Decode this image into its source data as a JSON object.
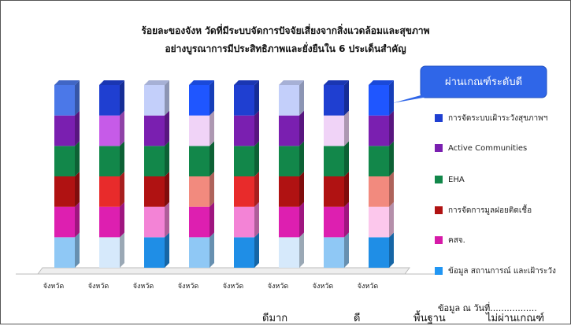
{
  "title_line1": "ร้อยละของจังห วัดที่มีระบบจัดการปัจจัยเสี่ยงจากสิ่งแวดล้อมและสุขภาพ",
  "title_line2": "อย่างบูรณาการมีประสิทธิภาพและยั่งยืนใน 6 ประเด็นสำคัญ",
  "callout": "ผ่านเกณฑ์ระดับดี",
  "note": "ข้อมูล ณ วันที่.................",
  "bottom_labels": [
    "ดีมาก",
    "ดี",
    "พื้นฐาน",
    "ไม่ผ่านเกณฑ์"
  ],
  "legend": [
    "การจัดระบบเฝ้าระวังสุขภาพฯ",
    "Active Communities",
    "EHA",
    "การจัดการมูลฝอยติดเชื้อ",
    "คสจ.",
    "ข้อมูล สถานการณ์ และเฝ้าระวัง"
  ],
  "colors": {
    "accent_callout": "#2f66e8",
    "legend_swatches": [
      "#1f3fd1",
      "#7a1fb0",
      "#12874a",
      "#b01212",
      "#d61aa8",
      "#2196f3"
    ]
  },
  "chart_data": {
    "type": "bar",
    "stacked": true,
    "categories": [
      "จังหวัด",
      "จังหวัด",
      "จังหวัด",
      "จังหวัด",
      "จังหวัด",
      "จังหวัด",
      "จังหวัด",
      "จังหวัด"
    ],
    "series": [
      {
        "name": "ข้อมูล สถานการณ์ และเฝ้าระวัง",
        "values": [
          1,
          1,
          1,
          1,
          1,
          1,
          1,
          1
        ]
      },
      {
        "name": "คสจ.",
        "values": [
          1,
          1,
          1,
          1,
          1,
          1,
          1,
          1
        ]
      },
      {
        "name": "การจัดการมูลฝอยติดเชื้อ",
        "values": [
          1,
          1,
          1,
          1,
          1,
          1,
          1,
          1
        ]
      },
      {
        "name": "EHA",
        "values": [
          1,
          1,
          1,
          1,
          1,
          1,
          1,
          1
        ]
      },
      {
        "name": "Active Communities",
        "values": [
          1,
          1,
          1,
          1,
          1,
          1,
          1,
          1
        ]
      },
      {
        "name": "การจัดระบบเฝ้าระวังสุขภาพฯ",
        "values": [
          1,
          1,
          1,
          1,
          1,
          1,
          1,
          1
        ]
      }
    ],
    "segment_colors": [
      [
        "#8fc8f5",
        "#d6e9fb",
        "#1f8ee6",
        "#8fc8f5",
        "#1f8ee6",
        "#d6e9fb",
        "#8fc8f5",
        "#1f8ee6"
      ],
      [
        "#dd1fb0",
        "#dd1fb0",
        "#f383d6",
        "#dd1fb0",
        "#f383d6",
        "#dd1fb0",
        "#dd1fb0",
        "#fcc7ec"
      ],
      [
        "#b01212",
        "#e82b2b",
        "#b01212",
        "#f28a7e",
        "#e82b2b",
        "#b01212",
        "#b01212",
        "#f28a7e"
      ],
      [
        "#12874a",
        "#12874a",
        "#12874a",
        "#12874a",
        "#12874a",
        "#12874a",
        "#12874a",
        "#12874a"
      ],
      [
        "#7a1fb0",
        "#c65be8",
        "#7a1fb0",
        "#f0d3f7",
        "#7a1fb0",
        "#7a1fb0",
        "#f0d3f7",
        "#7a1fb0"
      ],
      [
        "#4b78e8",
        "#1f3fd1",
        "#c3cffa",
        "#1f56ff",
        "#1f3fd1",
        "#c3cffa",
        "#1f3fd1",
        "#1f56ff"
      ]
    ],
    "ylim": [
      0,
      6
    ],
    "grid": false,
    "legend_position": "right"
  }
}
